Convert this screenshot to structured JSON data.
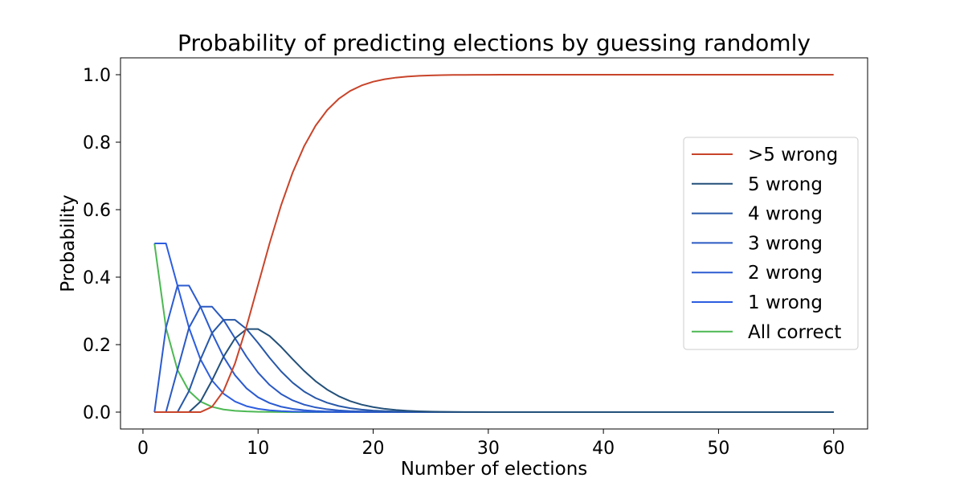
{
  "chart_data": {
    "type": "line",
    "title": "Probability of predicting elections by guessing randomly",
    "xlabel": "Number of elections",
    "ylabel": "Probability",
    "xlim": [
      -1.95,
      62.95
    ],
    "ylim": [
      -0.05,
      1.05
    ],
    "xticks": [
      0,
      10,
      20,
      30,
      40,
      50,
      60
    ],
    "yticks": [
      0.0,
      0.2,
      0.4,
      0.6,
      0.8,
      1.0
    ],
    "ytick_labels": [
      "0.0",
      "0.2",
      "0.4",
      "0.6",
      "0.8",
      "1.0"
    ],
    "grid": false,
    "legend_position": "center-right",
    "x": [
      1,
      2,
      3,
      4,
      5,
      6,
      7,
      8,
      9,
      10,
      11,
      12,
      13,
      14,
      15,
      16,
      17,
      18,
      19,
      20,
      21,
      22,
      23,
      24,
      25,
      26,
      27,
      28,
      29,
      30,
      31,
      32,
      33,
      34,
      35,
      36,
      37,
      38,
      39,
      40,
      41,
      42,
      43,
      44,
      45,
      46,
      47,
      48,
      49,
      50,
      51,
      52,
      53,
      54,
      55,
      56,
      57,
      58,
      59,
      60
    ],
    "series": [
      {
        "name": ">5 wrong",
        "color": "#c8442a",
        "values": [
          0,
          0,
          0,
          0,
          0,
          0.0156,
          0.0625,
          0.1445,
          0.2539,
          0.377,
          0.5,
          0.6128,
          0.7095,
          0.788,
          0.8491,
          0.8949,
          0.9283,
          0.9519,
          0.9682,
          0.9793,
          0.9867,
          0.9915,
          0.9947,
          0.9967,
          0.998,
          0.9988,
          0.9993,
          0.9995,
          0.9997,
          0.9998,
          0.9999,
          0.9999,
          1,
          1,
          1,
          1,
          1,
          1,
          1,
          1,
          1,
          1,
          1,
          1,
          1,
          1,
          1,
          1,
          1,
          1,
          1,
          1,
          1,
          1,
          1,
          1,
          1,
          1,
          1,
          1
        ]
      },
      {
        "name": "5 wrong",
        "color": "#23507a",
        "values": [
          0,
          0,
          0,
          0,
          0.0313,
          0.0938,
          0.1641,
          0.2188,
          0.2461,
          0.2461,
          0.2256,
          0.1934,
          0.1571,
          0.1222,
          0.0916,
          0.0667,
          0.0472,
          0.0327,
          0.0222,
          0.0148,
          0.0097,
          0.0063,
          0.004,
          0.0025,
          0.0016,
          0.001,
          0.0006,
          0.0004,
          0.0002,
          0.0001,
          0.0001,
          0,
          0,
          0,
          0,
          0,
          0,
          0,
          0,
          0,
          0,
          0,
          0,
          0,
          0,
          0,
          0,
          0,
          0,
          0,
          0,
          0,
          0,
          0,
          0,
          0,
          0,
          0,
          0,
          0
        ]
      },
      {
        "name": "4 wrong",
        "color": "#2757a8",
        "values": [
          0,
          0,
          0,
          0.0625,
          0.1563,
          0.2344,
          0.2734,
          0.2734,
          0.2461,
          0.2051,
          0.1611,
          0.1208,
          0.0873,
          0.0611,
          0.0417,
          0.0278,
          0.0182,
          0.0117,
          0.0074,
          0.0046,
          0.0029,
          0.0018,
          0.0011,
          0.0006,
          0.0004,
          0.0002,
          0.0001,
          0.0001,
          0,
          0,
          0,
          0,
          0,
          0,
          0,
          0,
          0,
          0,
          0,
          0,
          0,
          0,
          0,
          0,
          0,
          0,
          0,
          0,
          0,
          0,
          0,
          0,
          0,
          0,
          0,
          0,
          0,
          0,
          0,
          0
        ]
      },
      {
        "name": "3 wrong",
        "color": "#2a59c2",
        "values": [
          0,
          0,
          0.125,
          0.25,
          0.3125,
          0.3125,
          0.2734,
          0.2188,
          0.1641,
          0.1172,
          0.0806,
          0.0537,
          0.0349,
          0.0222,
          0.0139,
          0.0085,
          0.0052,
          0.0031,
          0.0018,
          0.0011,
          0.0006,
          0.0004,
          0.0002,
          0.0001,
          0.0001,
          0,
          0,
          0,
          0,
          0,
          0,
          0,
          0,
          0,
          0,
          0,
          0,
          0,
          0,
          0,
          0,
          0,
          0,
          0,
          0,
          0,
          0,
          0,
          0,
          0,
          0,
          0,
          0,
          0,
          0,
          0,
          0,
          0,
          0,
          0
        ]
      },
      {
        "name": "2 wrong",
        "color": "#2b5bd0",
        "values": [
          0,
          0.25,
          0.375,
          0.375,
          0.3125,
          0.2344,
          0.1641,
          0.1094,
          0.0703,
          0.0439,
          0.0269,
          0.0161,
          0.0095,
          0.0056,
          0.0032,
          0.0018,
          0.001,
          0.0006,
          0.0003,
          0.0002,
          0.0001,
          0.0001,
          0,
          0,
          0,
          0,
          0,
          0,
          0,
          0,
          0,
          0,
          0,
          0,
          0,
          0,
          0,
          0,
          0,
          0,
          0,
          0,
          0,
          0,
          0,
          0,
          0,
          0,
          0,
          0,
          0,
          0,
          0,
          0,
          0,
          0,
          0,
          0,
          0,
          0
        ]
      },
      {
        "name": "1 wrong",
        "color": "#2d5ee0",
        "values": [
          0.5,
          0.5,
          0.375,
          0.25,
          0.1563,
          0.0938,
          0.0547,
          0.0313,
          0.0176,
          0.0098,
          0.0054,
          0.0029,
          0.0016,
          0.0009,
          0.0005,
          0.0002,
          0.0001,
          0.0001,
          0,
          0,
          0,
          0,
          0,
          0,
          0,
          0,
          0,
          0,
          0,
          0,
          0,
          0,
          0,
          0,
          0,
          0,
          0,
          0,
          0,
          0,
          0,
          0,
          0,
          0,
          0,
          0,
          0,
          0,
          0,
          0,
          0,
          0,
          0,
          0,
          0,
          0,
          0,
          0,
          0,
          0
        ]
      },
      {
        "name": "All correct",
        "color": "#4cb853",
        "values": [
          0.5,
          0.25,
          0.125,
          0.0625,
          0.0313,
          0.0156,
          0.0078,
          0.0039,
          0.002,
          0.001,
          0.0005,
          0.0002,
          0.0001,
          0.0001,
          0,
          0,
          0,
          0,
          0,
          0,
          0,
          0,
          0,
          0,
          0,
          0,
          0,
          0,
          0,
          0,
          0,
          0,
          0,
          0,
          0,
          0,
          0,
          0,
          0,
          0,
          0,
          0,
          0,
          0,
          0,
          0,
          0,
          0,
          0,
          0,
          0,
          0,
          0,
          0,
          0,
          0,
          0,
          0,
          0,
          0
        ]
      }
    ]
  }
}
